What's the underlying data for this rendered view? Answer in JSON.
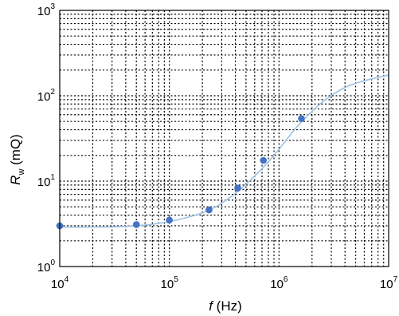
{
  "chart_data": {
    "type": "scatter",
    "title": "",
    "xlabel": {
      "italic": "f",
      "rest": " (Hz)"
    },
    "ylabel": {
      "italic": "R",
      "sub": "w",
      "rest": " (mQ)"
    },
    "x_scale": "log",
    "y_scale": "log",
    "xlim": [
      10000,
      10000000
    ],
    "ylim": [
      1,
      1000
    ],
    "grid": true,
    "x_ticks": [
      {
        "base": "10",
        "exp": "4",
        "value": 10000
      },
      {
        "base": "10",
        "exp": "5",
        "value": 100000
      },
      {
        "base": "10",
        "exp": "6",
        "value": 1000000
      },
      {
        "base": "10",
        "exp": "7",
        "value": 10000000
      }
    ],
    "y_ticks": [
      {
        "base": "10",
        "exp": "0",
        "value": 1
      },
      {
        "base": "10",
        "exp": "1",
        "value": 10
      },
      {
        "base": "10",
        "exp": "2",
        "value": 100
      },
      {
        "base": "10",
        "exp": "3",
        "value": 1000
      }
    ],
    "measured": {
      "x": [
        10000,
        50000,
        100000,
        230000,
        420000,
        720000,
        1600000
      ],
      "y": [
        3.0,
        3.1,
        3.5,
        4.6,
        8.3,
        17.5,
        54
      ]
    },
    "fit": {
      "x": [
        10000,
        20000,
        40000,
        80000,
        150000,
        250000,
        400000,
        600000,
        900000,
        1500000,
        2500000,
        4000000,
        6000000,
        10000000
      ],
      "y": [
        2.9,
        2.9,
        2.95,
        3.2,
        3.8,
        4.8,
        7.2,
        11.5,
        20,
        45,
        85,
        125,
        150,
        175
      ]
    },
    "colors": {
      "marker": "#4472C4",
      "fit_line": "#9DC3E6",
      "grid": "#000000"
    }
  }
}
